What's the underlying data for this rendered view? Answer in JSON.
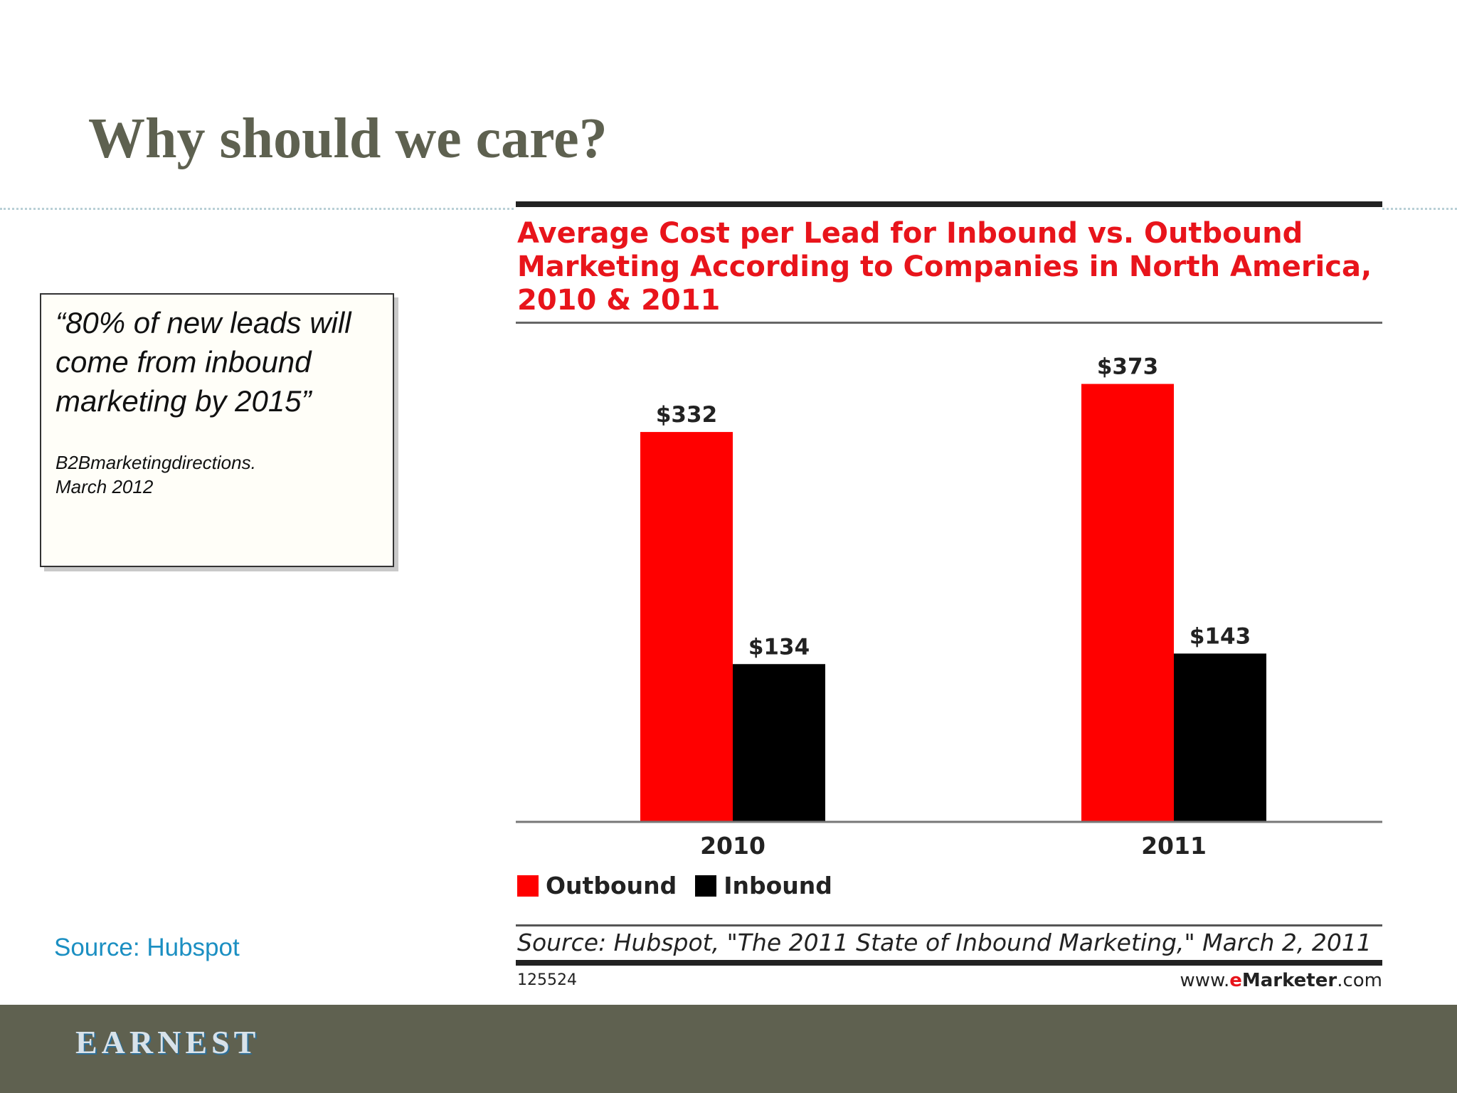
{
  "slide": {
    "title": "Why should we care?",
    "quote": "“80% of new leads will come from inbound marketing by 2015”",
    "quote_attribution": "B2Bmarketingdirections.\nMarch 2012",
    "source_link": "Source: Hubspot",
    "logo": "EARNEST"
  },
  "colors": {
    "title": "#5e6150",
    "footer": "#5f6150",
    "outbound": "#ff0000",
    "inbound": "#000000",
    "link": "#1b8fc2"
  },
  "chart_data": {
    "type": "bar",
    "title": "Average Cost per Lead for Inbound vs. Outbound Marketing According to Companies in North America, 2010 & 2011",
    "categories": [
      "2010",
      "2011"
    ],
    "series": [
      {
        "name": "Outbound",
        "values": [
          332,
          373
        ],
        "labels": [
          "$332",
          "$373"
        ],
        "color": "#ff0000"
      },
      {
        "name": "Inbound",
        "values": [
          134,
          143
        ],
        "labels": [
          "$134",
          "$143"
        ],
        "color": "#000000"
      }
    ],
    "ylim": [
      0,
      400
    ],
    "grid": false,
    "legend": "bottom-left",
    "source": "Source: Hubspot, \"The 2011 State of Inbound Marketing,\" March 2, 2011",
    "chart_id": "125524",
    "site": {
      "pre": "www.",
      "e": "e",
      "brand": "Marketer",
      "post": ".com"
    }
  }
}
